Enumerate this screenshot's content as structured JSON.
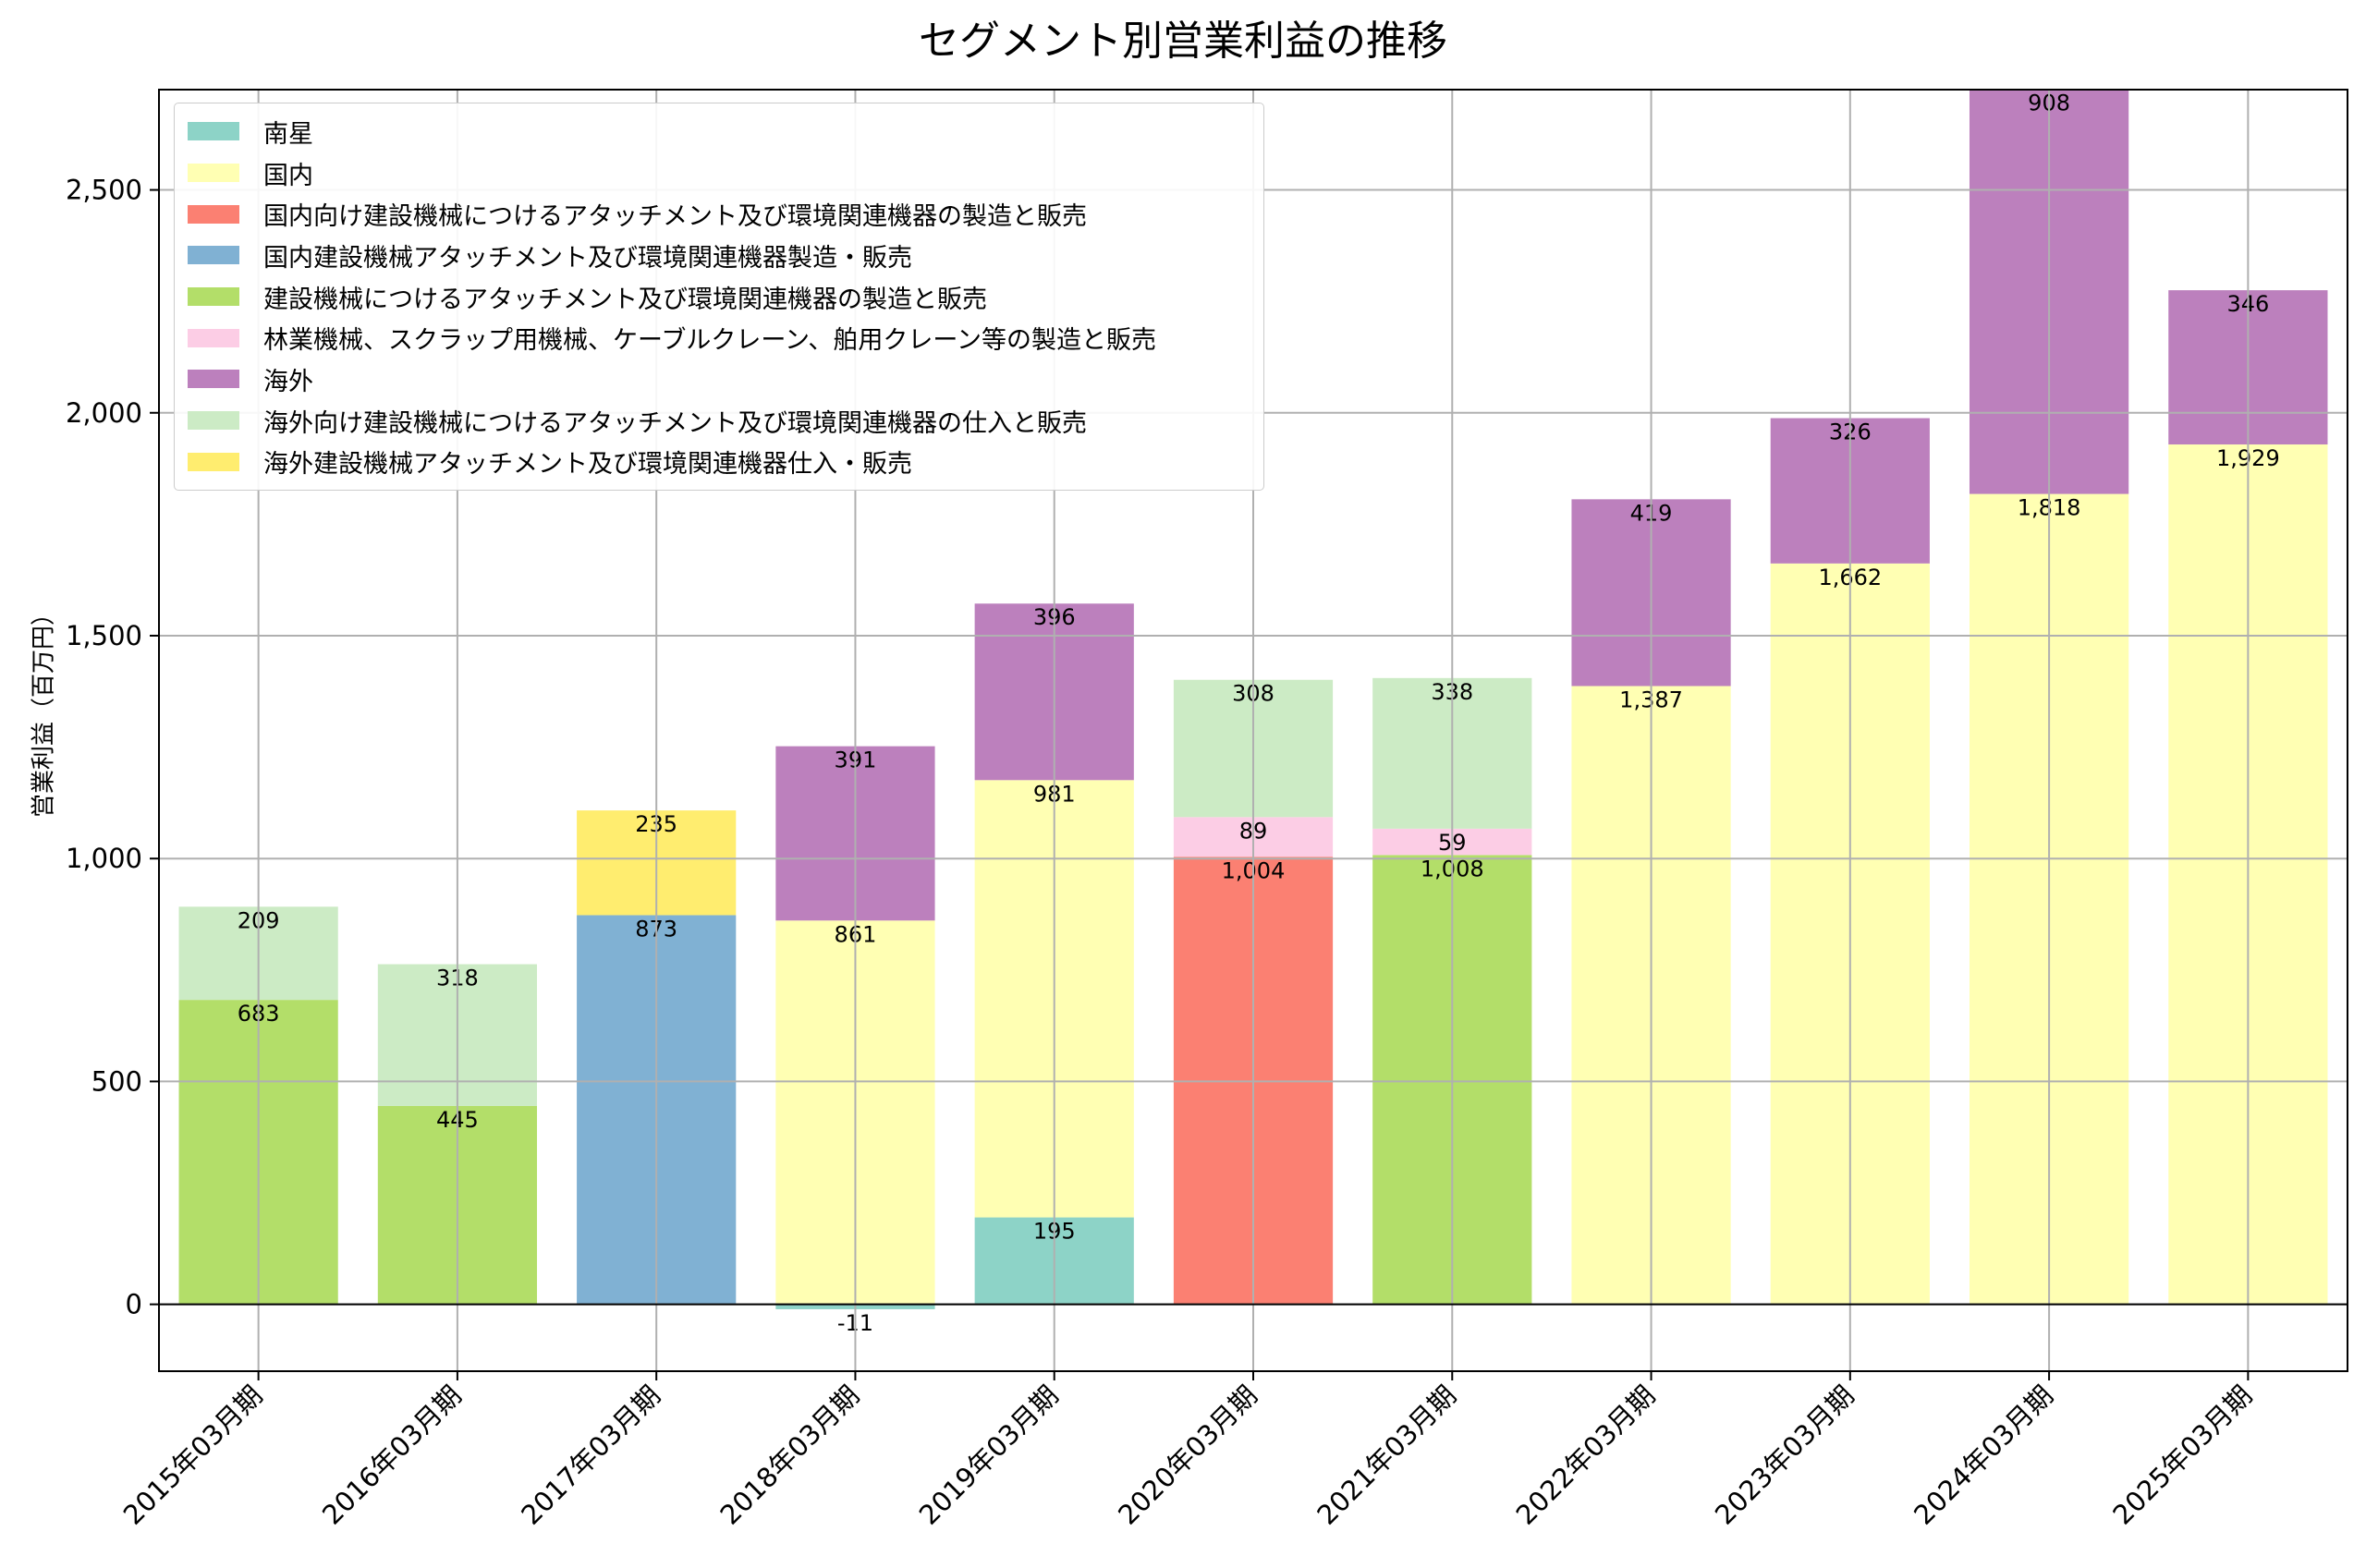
{
  "chart_data": {
    "type": "bar",
    "stacked": true,
    "title": "セグメント別営業利益の推移",
    "xlabel": "",
    "ylabel": "営業利益（百万円）",
    "ylim": [
      -150,
      2725
    ],
    "yticks": [
      0,
      500,
      1000,
      1500,
      2000,
      2500
    ],
    "ytick_labels": [
      "0",
      "500",
      "1,000",
      "1,500",
      "2,000",
      "2,500"
    ],
    "grid": true,
    "legend_position": "top-left",
    "categories": [
      "2015年03月期",
      "2016年03月期",
      "2017年03月期",
      "2018年03月期",
      "2019年03月期",
      "2020年03月期",
      "2021年03月期",
      "2022年03月期",
      "2023年03月期",
      "2024年03月期",
      "2025年03月期"
    ],
    "series": [
      {
        "name": "南星",
        "color": "#8dd3c7",
        "values": [
          null,
          null,
          null,
          -11,
          195,
          null,
          null,
          null,
          null,
          null,
          null
        ],
        "labels": [
          "",
          "",
          "",
          "-11",
          "195",
          "",
          "",
          "",
          "",
          "",
          ""
        ]
      },
      {
        "name": "国内",
        "color": "#ffffb3",
        "values": [
          null,
          null,
          null,
          861,
          981,
          null,
          null,
          1387,
          1662,
          1818,
          1929
        ],
        "labels": [
          "",
          "",
          "",
          "861",
          "981",
          "",
          "",
          "1,387",
          "1,662",
          "1,818",
          "1,929"
        ]
      },
      {
        "name": "国内向け建設機械につけるアタッチメント及び環境関連機器の製造と販売",
        "color": "#fb8072",
        "values": [
          null,
          null,
          null,
          null,
          null,
          1004,
          null,
          null,
          null,
          null,
          null
        ],
        "labels": [
          "",
          "",
          "",
          "",
          "",
          "1,004",
          "",
          "",
          "",
          "",
          ""
        ]
      },
      {
        "name": "国内建設機械アタッチメント及び環境関連機器製造・販売",
        "color": "#80b1d3",
        "values": [
          null,
          null,
          873,
          null,
          null,
          null,
          null,
          null,
          null,
          null,
          null
        ],
        "labels": [
          "",
          "",
          "873",
          "",
          "",
          "",
          "",
          "",
          "",
          "",
          ""
        ]
      },
      {
        "name": "建設機械につけるアタッチメント及び環境関連機器の製造と販売",
        "color": "#b3de69",
        "values": [
          683,
          445,
          null,
          null,
          null,
          null,
          1008,
          null,
          null,
          null,
          null
        ],
        "labels": [
          "683",
          "445",
          "",
          "",
          "",
          "",
          "1,008",
          "",
          "",
          "",
          ""
        ]
      },
      {
        "name": "林業機械、スクラップ用機械、ケーブルクレーン、舶用クレーン等の製造と販売",
        "color": "#fccde5",
        "values": [
          null,
          null,
          null,
          null,
          null,
          89,
          59,
          null,
          null,
          null,
          null
        ],
        "labels": [
          "",
          "",
          "",
          "",
          "",
          "89",
          "59",
          "",
          "",
          "",
          ""
        ]
      },
      {
        "name": "海外",
        "color": "#bc80bd",
        "values": [
          null,
          null,
          null,
          391,
          396,
          null,
          null,
          419,
          326,
          908,
          346
        ],
        "labels": [
          "",
          "",
          "",
          "391",
          "396",
          "",
          "",
          "419",
          "326",
          "908",
          "346"
        ]
      },
      {
        "name": "海外向け建設機械につけるアタッチメント及び環境関連機器の仕入と販売",
        "color": "#ccebc5",
        "values": [
          209,
          318,
          null,
          null,
          null,
          308,
          338,
          null,
          null,
          null,
          null
        ],
        "labels": [
          "209",
          "318",
          "",
          "",
          "",
          "308",
          "338",
          "",
          "",
          "",
          ""
        ]
      },
      {
        "name": "海外建設機械アタッチメント及び環境関連機器仕入・販売",
        "color": "#ffed6f",
        "values": [
          null,
          null,
          235,
          null,
          null,
          null,
          null,
          null,
          null,
          null,
          null
        ],
        "labels": [
          "",
          "",
          "235",
          "",
          "",
          "",
          "",
          "",
          "",
          "",
          ""
        ]
      }
    ]
  }
}
